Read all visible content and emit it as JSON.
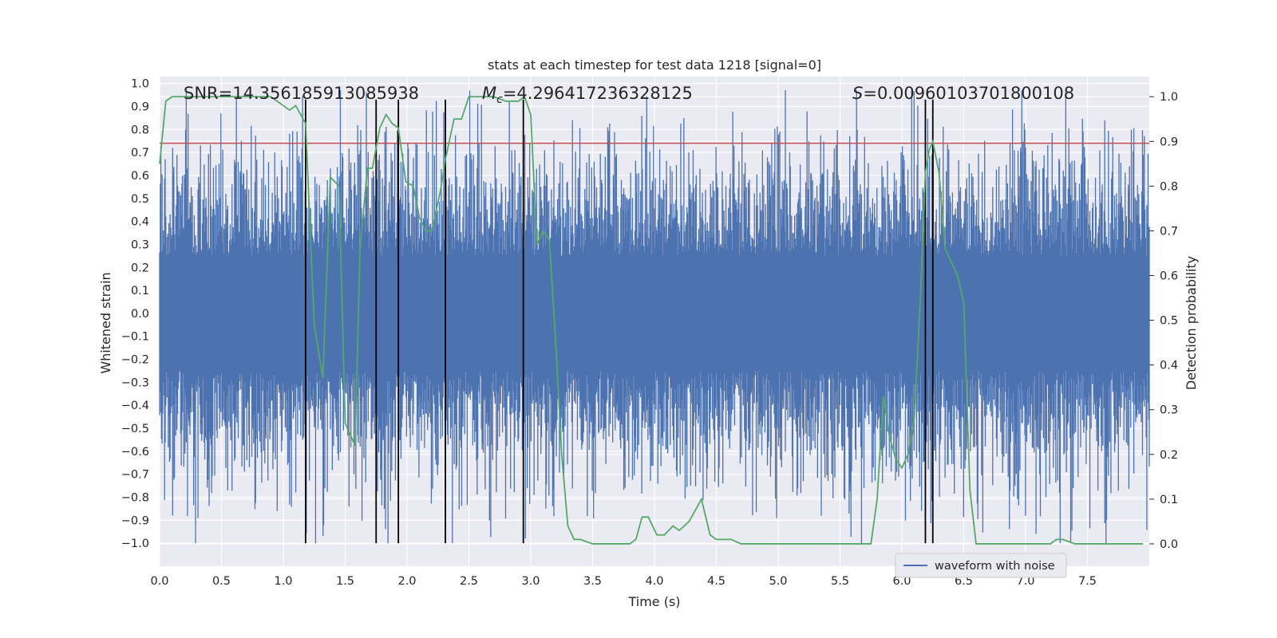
{
  "chart_data": {
    "type": "line",
    "title": "stats at each timestep for test data 1218 [signal=0]",
    "xlabel": "Time (s)",
    "ylabel": "Whitened strain",
    "y2label": "Detection probability",
    "xlim": [
      0,
      8
    ],
    "ylim": [
      -1.1,
      1.03
    ],
    "y2lim": [
      -0.05,
      1.045
    ],
    "xticks": [
      0.0,
      0.5,
      1.0,
      1.5,
      2.0,
      2.5,
      3.0,
      3.5,
      4.0,
      4.5,
      5.0,
      5.5,
      6.0,
      6.5,
      7.0,
      7.5
    ],
    "xtick_labels": [
      "0.0",
      "0.5",
      "1.0",
      "1.5",
      "2.0",
      "2.5",
      "3.0",
      "3.5",
      "4.0",
      "4.5",
      "5.0",
      "5.5",
      "6.0",
      "6.5",
      "7.0",
      "7.5"
    ],
    "yticks": [
      1.0,
      0.9,
      0.8,
      0.7,
      0.6,
      0.5,
      0.4,
      0.3,
      0.2,
      0.1,
      0.0,
      -0.1,
      -0.2,
      -0.3,
      -0.4,
      -0.5,
      -0.6,
      -0.7,
      -0.8,
      -0.9,
      -1.0
    ],
    "ytick_labels": [
      "1.0",
      "0.9",
      "0.8",
      "0.7",
      "0.6",
      "0.5",
      "0.4",
      "0.3",
      "0.2",
      "0.1",
      "0.0",
      "−0.1",
      "−0.2",
      "−0.3",
      "−0.4",
      "−0.5",
      "−0.6",
      "−0.7",
      "−0.8",
      "−0.9",
      "−1.0"
    ],
    "y2ticks": [
      1.0,
      0.9,
      0.8,
      0.7,
      0.6,
      0.5,
      0.4,
      0.3,
      0.2,
      0.1,
      0.0
    ],
    "y2tick_labels": [
      "1.0",
      "0.9",
      "0.8",
      "0.7",
      "0.6",
      "0.5",
      "0.4",
      "0.3",
      "0.2",
      "0.1",
      "0.0"
    ],
    "annotations": {
      "snr": "SNR=14.356185913085938",
      "mc_symbol": "M",
      "mc_sub": "c",
      "mc_value": "=4.296417236328125",
      "s_symbol": "S",
      "s_value": "=0.00960103701800108"
    },
    "threshold": {
      "value": 0.74,
      "color": "#c44e52"
    },
    "vlines": [
      1.18,
      1.75,
      1.93,
      2.31,
      2.94,
      6.19,
      6.25
    ],
    "vline_range": [
      -1.0,
      0.93
    ],
    "waveform": {
      "name": "waveform with noise",
      "color": "#4c72b0",
      "n_samples": 1600,
      "amplitude_std": 0.26,
      "peak_max": 0.97,
      "peak_min": -1.0
    },
    "probability": {
      "name": "Detection probability",
      "color": "#55a868",
      "x": [
        0.0,
        0.05,
        0.1,
        0.2,
        0.3,
        0.5,
        0.7,
        0.9,
        0.95,
        1.0,
        1.05,
        1.1,
        1.18,
        1.25,
        1.32,
        1.38,
        1.45,
        1.5,
        1.58,
        1.62,
        1.68,
        1.72,
        1.78,
        1.83,
        1.88,
        1.93,
        1.99,
        2.05,
        2.1,
        2.15,
        2.2,
        2.27,
        2.31,
        2.38,
        2.44,
        2.5,
        2.55,
        2.62,
        2.7,
        2.8,
        2.9,
        2.95,
        3.0,
        3.05,
        3.1,
        3.15,
        3.2,
        3.25,
        3.3,
        3.35,
        3.4,
        3.5,
        3.6,
        3.7,
        3.8,
        3.85,
        3.9,
        3.95,
        4.02,
        4.08,
        4.15,
        4.2,
        4.28,
        4.38,
        4.45,
        4.5,
        4.55,
        4.62,
        4.7,
        4.8,
        5.0,
        5.2,
        5.3,
        5.5,
        5.7,
        5.75,
        5.8,
        5.85,
        5.9,
        5.95,
        6.0,
        6.05,
        6.1,
        6.15,
        6.19,
        6.22,
        6.25,
        6.3,
        6.35,
        6.4,
        6.45,
        6.5,
        6.55,
        6.6,
        6.65,
        6.7,
        7.0,
        7.2,
        7.25,
        7.3,
        7.4,
        7.6,
        7.95
      ],
      "y": [
        0.85,
        0.99,
        1.0,
        1.0,
        1.0,
        1.0,
        1.0,
        1.0,
        0.99,
        0.98,
        0.97,
        0.98,
        0.94,
        0.49,
        0.37,
        0.82,
        0.8,
        0.27,
        0.22,
        0.66,
        0.84,
        0.84,
        0.93,
        0.96,
        0.94,
        0.93,
        0.81,
        0.8,
        0.73,
        0.7,
        0.7,
        0.79,
        0.86,
        0.95,
        0.95,
        1.0,
        1.0,
        1.0,
        1.0,
        0.99,
        0.99,
        1.0,
        0.96,
        0.67,
        0.7,
        0.68,
        0.46,
        0.2,
        0.04,
        0.01,
        0.01,
        0.0,
        0.0,
        0.0,
        0.0,
        0.01,
        0.06,
        0.06,
        0.02,
        0.02,
        0.04,
        0.03,
        0.05,
        0.1,
        0.02,
        0.01,
        0.01,
        0.01,
        0.0,
        0.0,
        0.0,
        0.0,
        0.0,
        0.0,
        0.0,
        0.0,
        0.1,
        0.33,
        0.24,
        0.19,
        0.17,
        0.2,
        0.28,
        0.55,
        0.83,
        0.88,
        0.9,
        0.83,
        0.66,
        0.63,
        0.6,
        0.54,
        0.12,
        0.0,
        0.0,
        0.0,
        0.0,
        0.0,
        0.01,
        0.01,
        0.0,
        0.0,
        0.0
      ]
    },
    "legend": {
      "label": "waveform with noise",
      "position": "lower-right"
    }
  }
}
